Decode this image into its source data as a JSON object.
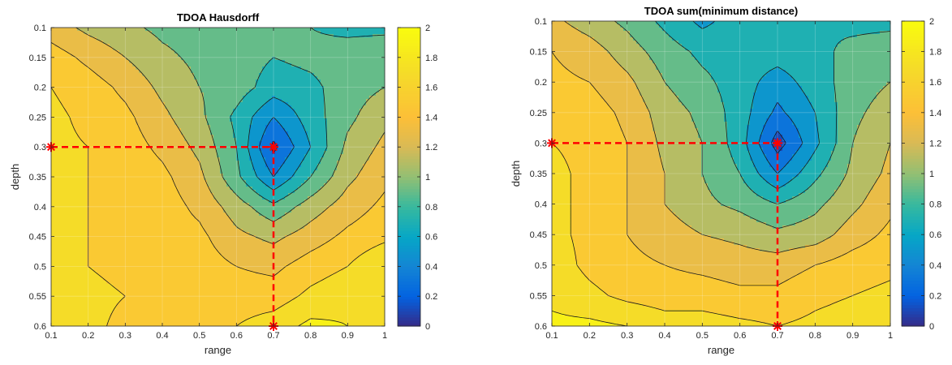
{
  "chart_data": [
    {
      "type": "contour",
      "title": "TDOA Hausdorff",
      "xlabel": "range",
      "ylabel": "depth",
      "xlim": [
        0.1,
        1.0
      ],
      "ylim": [
        0.1,
        0.6
      ],
      "y_reversed": true,
      "grid": true,
      "x_ticks": [
        "0.1",
        "0.2",
        "0.3",
        "0.4",
        "0.5",
        "0.6",
        "0.7",
        "0.8",
        "0.9",
        "1"
      ],
      "y_ticks": [
        "0.1",
        "0.15",
        "0.2",
        "0.25",
        "0.3",
        "0.35",
        "0.4",
        "0.45",
        "0.5",
        "0.55",
        "0.6"
      ],
      "colorbar": {
        "range": [
          0,
          2
        ],
        "ticks": [
          "0",
          "0.2",
          "0.4",
          "0.6",
          "0.8",
          "1",
          "1.2",
          "1.4",
          "1.6",
          "1.8",
          "2"
        ]
      },
      "x": [
        0.1,
        0.2,
        0.3,
        0.4,
        0.5,
        0.6,
        0.7,
        0.8,
        0.9,
        1.0
      ],
      "y": [
        0.1,
        0.15,
        0.2,
        0.25,
        0.3,
        0.35,
        0.4,
        0.45,
        0.5,
        0.55,
        0.6
      ],
      "z": [
        [
          1.3,
          1.15,
          1.05,
          0.95,
          0.9,
          0.85,
          0.85,
          0.8,
          0.75,
          0.75
        ],
        [
          1.5,
          1.35,
          1.2,
          1.05,
          0.95,
          0.9,
          0.8,
          0.85,
          0.9,
          0.95
        ],
        [
          1.6,
          1.5,
          1.35,
          1.15,
          1.0,
          0.9,
          0.7,
          0.75,
          0.9,
          1.0
        ],
        [
          1.65,
          1.55,
          1.45,
          1.25,
          1.05,
          0.75,
          0.4,
          0.7,
          0.95,
          1.15
        ],
        [
          1.65,
          1.6,
          1.5,
          1.35,
          1.15,
          0.8,
          0.15,
          0.6,
          1.05,
          1.25
        ],
        [
          1.65,
          1.6,
          1.55,
          1.45,
          1.25,
          0.85,
          0.4,
          0.8,
          1.15,
          1.35
        ],
        [
          1.65,
          1.6,
          1.55,
          1.5,
          1.35,
          1.1,
          0.85,
          1.1,
          1.3,
          1.45
        ],
        [
          1.65,
          1.6,
          1.55,
          1.5,
          1.45,
          1.25,
          1.15,
          1.3,
          1.45,
          1.55
        ],
        [
          1.65,
          1.6,
          1.55,
          1.5,
          1.5,
          1.4,
          1.35,
          1.5,
          1.6,
          1.8
        ],
        [
          1.65,
          1.65,
          1.6,
          1.55,
          1.55,
          1.5,
          1.5,
          1.65,
          1.75,
          1.7
        ],
        [
          1.65,
          1.65,
          1.55,
          1.55,
          1.55,
          1.6,
          1.7,
          1.85,
          1.8,
          1.7
        ]
      ],
      "levels": [
        0.2,
        0.4,
        0.6,
        0.8,
        1.0,
        1.2,
        1.4,
        1.6,
        1.8
      ],
      "markers": [
        [
          0.1,
          0.3
        ],
        [
          0.7,
          0.3
        ],
        [
          0.7,
          0.6
        ]
      ],
      "estimate": [
        0.7,
        0.3
      ]
    },
    {
      "type": "contour",
      "title": "TDOA sum(minimum distance)",
      "xlabel": "range",
      "ylabel": "depth",
      "xlim": [
        0.1,
        1.0
      ],
      "ylim": [
        0.1,
        0.6
      ],
      "y_reversed": true,
      "grid": true,
      "x_ticks": [
        "0.1",
        "0.2",
        "0.3",
        "0.4",
        "0.5",
        "0.6",
        "0.7",
        "0.8",
        "0.9",
        "1"
      ],
      "y_ticks": [
        "0.1",
        "0.15",
        "0.2",
        "0.25",
        "0.3",
        "0.35",
        "0.4",
        "0.45",
        "0.5",
        "0.55",
        "0.6"
      ],
      "colorbar": {
        "range": [
          0,
          2
        ],
        "ticks": [
          "0",
          "0.2",
          "0.4",
          "0.6",
          "0.8",
          "1",
          "1.2",
          "1.4",
          "1.6",
          "1.8",
          "2"
        ]
      },
      "x": [
        0.1,
        0.2,
        0.3,
        0.4,
        0.5,
        0.6,
        0.7,
        0.8,
        0.9,
        1.0
      ],
      "y": [
        0.1,
        0.15,
        0.2,
        0.25,
        0.3,
        0.35,
        0.4,
        0.45,
        0.5,
        0.55,
        0.6
      ],
      "z": [
        [
          1.25,
          1.1,
          0.95,
          0.75,
          0.55,
          0.7,
          0.75,
          0.8,
          0.75,
          0.75
        ],
        [
          1.4,
          1.3,
          1.1,
          0.9,
          0.75,
          0.7,
          0.7,
          0.75,
          0.85,
          0.9
        ],
        [
          1.45,
          1.4,
          1.25,
          1.0,
          0.85,
          0.7,
          0.5,
          0.7,
          0.9,
          1.0
        ],
        [
          1.55,
          1.5,
          1.35,
          1.1,
          0.95,
          0.7,
          0.35,
          0.6,
          0.95,
          1.1
        ],
        [
          1.6,
          1.55,
          1.4,
          1.15,
          1.0,
          0.7,
          0.1,
          0.55,
          1.0,
          1.2
        ],
        [
          1.65,
          1.55,
          1.4,
          1.2,
          1.0,
          0.8,
          0.4,
          0.75,
          1.05,
          1.25
        ],
        [
          1.65,
          1.55,
          1.4,
          1.2,
          1.05,
          0.95,
          0.8,
          0.95,
          1.15,
          1.35
        ],
        [
          1.65,
          1.55,
          1.4,
          1.3,
          1.2,
          1.15,
          1.05,
          1.1,
          1.3,
          1.45
        ],
        [
          1.7,
          1.55,
          1.45,
          1.4,
          1.35,
          1.3,
          1.3,
          1.4,
          1.5,
          1.55
        ],
        [
          1.75,
          1.65,
          1.55,
          1.5,
          1.5,
          1.45,
          1.45,
          1.55,
          1.6,
          1.65
        ],
        [
          1.85,
          1.85,
          1.8,
          1.7,
          1.7,
          1.65,
          1.6,
          1.65,
          1.7,
          1.7
        ]
      ],
      "levels": [
        0.2,
        0.4,
        0.6,
        0.8,
        1.0,
        1.2,
        1.4,
        1.6,
        1.8
      ],
      "markers": [
        [
          0.1,
          0.3
        ],
        [
          0.7,
          0.3
        ],
        [
          0.7,
          0.6
        ]
      ],
      "estimate": [
        0.7,
        0.3
      ]
    }
  ]
}
